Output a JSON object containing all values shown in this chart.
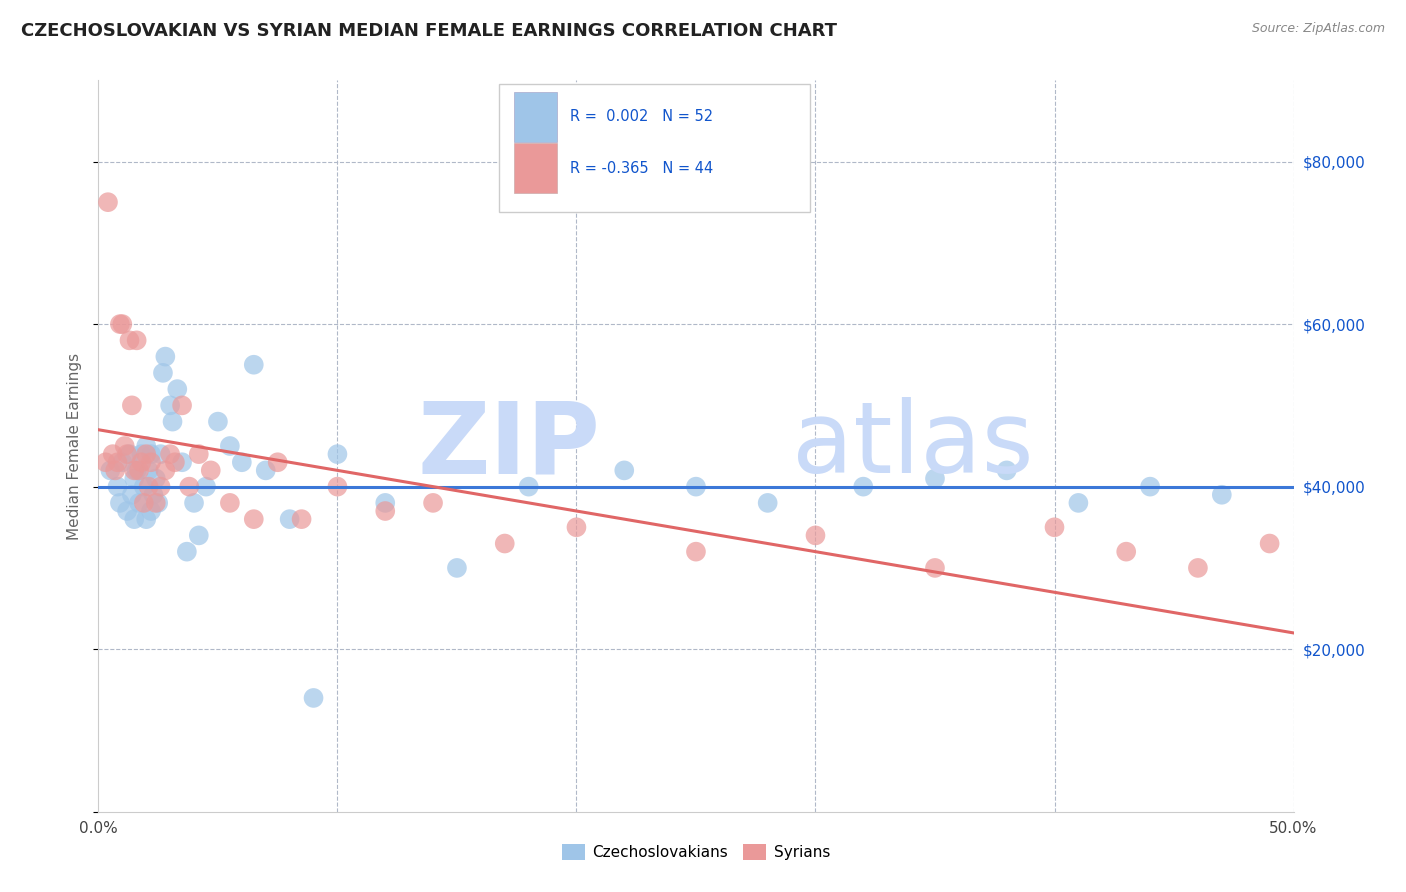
{
  "title": "CZECHOSLOVAKIAN VS SYRIAN MEDIAN FEMALE EARNINGS CORRELATION CHART",
  "source_text": "Source: ZipAtlas.com",
  "ylabel": "Median Female Earnings",
  "xlim": [
    0.0,
    0.5
  ],
  "ylim": [
    0,
    90000
  ],
  "xtick_values": [
    0.0,
    0.1,
    0.2,
    0.3,
    0.4,
    0.5
  ],
  "xticklabels_visible": [
    "0.0%",
    "",
    "",
    "",
    "",
    "50.0%"
  ],
  "ytick_values": [
    0,
    20000,
    40000,
    60000,
    80000
  ],
  "ytick_labels": [
    "",
    "$20,000",
    "$40,000",
    "$60,000",
    "$80,000"
  ],
  "legend_bottom_labels": [
    "Czechoslovakians",
    "Syrians"
  ],
  "blue_color": "#9fc5e8",
  "pink_color": "#ea9999",
  "blue_line_color": "#3c78d8",
  "pink_line_color": "#e06666",
  "r_text_color": "#1155cc",
  "watermark_color": "#c9daf8",
  "background_color": "#ffffff",
  "grid_color": "#b0b8c8",
  "legend_box_color": "#9fc5e8",
  "legend_box_pink": "#ea9999",
  "blue_scatter_x": [
    0.005,
    0.008,
    0.009,
    0.01,
    0.012,
    0.013,
    0.014,
    0.015,
    0.015,
    0.016,
    0.017,
    0.018,
    0.019,
    0.02,
    0.02,
    0.021,
    0.022,
    0.022,
    0.023,
    0.024,
    0.025,
    0.026,
    0.027,
    0.028,
    0.03,
    0.031,
    0.033,
    0.035,
    0.037,
    0.04,
    0.042,
    0.045,
    0.05,
    0.055,
    0.06,
    0.065,
    0.07,
    0.08,
    0.09,
    0.1,
    0.12,
    0.15,
    0.18,
    0.22,
    0.25,
    0.28,
    0.32,
    0.35,
    0.38,
    0.41,
    0.44,
    0.47
  ],
  "blue_scatter_y": [
    42000,
    40000,
    38000,
    43000,
    37000,
    44000,
    39000,
    41000,
    36000,
    42000,
    38000,
    44000,
    40000,
    36000,
    45000,
    42000,
    37000,
    44000,
    39000,
    41000,
    38000,
    44000,
    54000,
    56000,
    50000,
    48000,
    52000,
    43000,
    32000,
    38000,
    34000,
    40000,
    48000,
    45000,
    43000,
    55000,
    42000,
    36000,
    14000,
    44000,
    38000,
    30000,
    40000,
    42000,
    40000,
    38000,
    40000,
    41000,
    42000,
    38000,
    40000,
    39000
  ],
  "pink_scatter_x": [
    0.003,
    0.004,
    0.006,
    0.007,
    0.008,
    0.009,
    0.01,
    0.011,
    0.012,
    0.013,
    0.014,
    0.015,
    0.016,
    0.017,
    0.018,
    0.019,
    0.02,
    0.021,
    0.022,
    0.024,
    0.026,
    0.028,
    0.03,
    0.032,
    0.035,
    0.038,
    0.042,
    0.047,
    0.055,
    0.065,
    0.075,
    0.085,
    0.1,
    0.12,
    0.14,
    0.17,
    0.2,
    0.25,
    0.3,
    0.35,
    0.4,
    0.43,
    0.46,
    0.49
  ],
  "pink_scatter_y": [
    43000,
    75000,
    44000,
    42000,
    43000,
    60000,
    60000,
    45000,
    44000,
    58000,
    50000,
    42000,
    58000,
    42000,
    43000,
    38000,
    44000,
    40000,
    43000,
    38000,
    40000,
    42000,
    44000,
    43000,
    50000,
    40000,
    44000,
    42000,
    38000,
    36000,
    43000,
    36000,
    40000,
    37000,
    38000,
    33000,
    35000,
    32000,
    34000,
    30000,
    35000,
    32000,
    30000,
    33000
  ],
  "blue_trend_x": [
    0.0,
    0.5
  ],
  "blue_trend_y": [
    40000,
    40000
  ],
  "pink_trend_x": [
    0.0,
    0.5
  ],
  "pink_trend_y": [
    47000,
    22000
  ]
}
